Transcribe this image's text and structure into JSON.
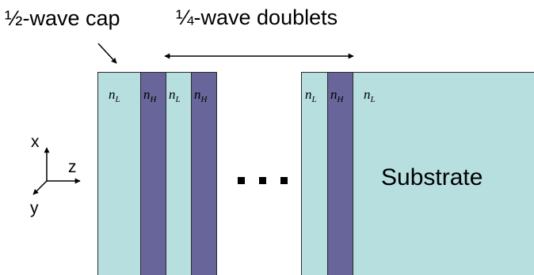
{
  "labels": {
    "cap": "½-wave cap",
    "doublets": "¼-wave doublets",
    "substrate": "Substrate"
  },
  "axes": {
    "x": "x",
    "y": "y",
    "z": "z"
  },
  "index": {
    "base": "n",
    "low_sub": "L",
    "high_sub": "H"
  },
  "colors": {
    "low_index": "#b7dfe0",
    "high_index": "#67659a",
    "outline": "#2b2b2b"
  },
  "ellipsis": "..."
}
